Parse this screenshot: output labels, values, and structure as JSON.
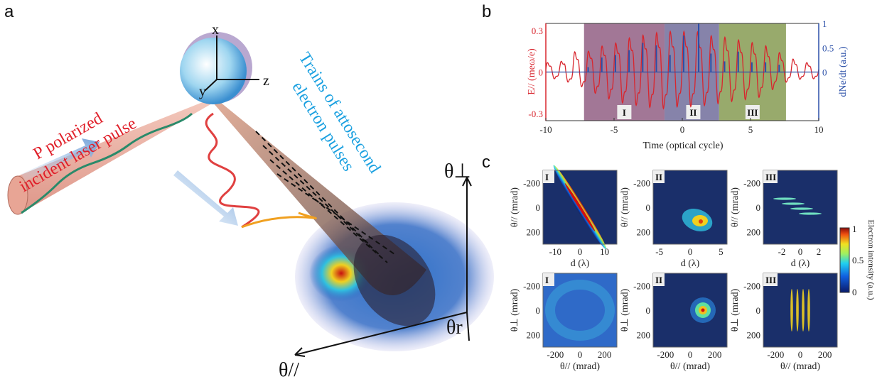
{
  "panel_labels": {
    "a": "a",
    "b": "b",
    "c": "c"
  },
  "panel_a": {
    "axis_x": "x",
    "axis_y": "y",
    "axis_z": "z",
    "laser_label_line1": "P polarized",
    "laser_label_line2": "incident laser pulse",
    "electron_label_line1": "Trains of attosecond",
    "electron_label_line2": "electron pulses",
    "theta_perp": "θ⊥",
    "theta_r": "θr",
    "theta_par": "θ//",
    "colors": {
      "laser_text": "#e0202a",
      "electron_text": "#1aa0e0",
      "cone": "#e9a79a"
    }
  },
  "chart_data": [
    {
      "type": "line",
      "panel": "b",
      "xlabel": "Time (optical cycle)",
      "ylabel_left": "E// (meω/e)",
      "ylabel_right": "dNe/dt (a.u.)",
      "xlim": [
        -10,
        10
      ],
      "ylim_left": [
        -0.35,
        0.35
      ],
      "ylim_right": [
        -1,
        1
      ],
      "x_ticks": [
        "-10",
        "-5",
        "0",
        "5",
        "10"
      ],
      "y_ticks_left": [
        "0.3",
        "0",
        "-0.3"
      ],
      "y_ticks_right": [
        "1",
        "0.5",
        "0"
      ],
      "regions": [
        {
          "label": "I",
          "x": [
            -7.2,
            -1.3
          ],
          "color": "#a27796"
        },
        {
          "label": "II",
          "x": [
            -1.3,
            2.7
          ],
          "color": "#8683aa"
        },
        {
          "label": "III",
          "x": [
            2.7,
            7.6
          ],
          "color": "#98aa6c"
        }
      ],
      "series": [
        {
          "axis": "left",
          "color": "#d8262e",
          "cycles": [
            -9,
            -8,
            -7,
            -6,
            -5,
            -4,
            -3,
            -2,
            -1,
            0,
            1,
            2,
            3,
            4,
            5,
            6,
            7,
            8,
            9
          ],
          "positive_peaks": [
            0.07,
            0.15,
            0.15,
            0.19,
            0.21,
            0.25,
            0.27,
            0.29,
            0.3,
            0.3,
            0.3,
            0.27,
            0.26,
            0.24,
            0.22,
            0.2,
            0.15,
            0.1,
            0.07
          ],
          "negative_peaks": [
            -0.05,
            -0.09,
            -0.12,
            -0.18,
            -0.21,
            -0.24,
            -0.25,
            -0.27,
            -0.27,
            -0.25,
            -0.26,
            -0.24,
            -0.23,
            -0.21,
            -0.2,
            -0.18,
            -0.1,
            -0.06,
            -0.05
          ]
        },
        {
          "axis": "right",
          "color": "#2a4fa8",
          "spike_x": [
            -6.9,
            -5.9,
            -4.9,
            -3.9,
            -2.9,
            -1.9,
            -0.9,
            0.1,
            1.2,
            2.1,
            3.1,
            4.1,
            5.1,
            6.1,
            7.1
          ],
          "spike_y": [
            0.1,
            0.3,
            0.35,
            0.45,
            0.6,
            0.55,
            0.35,
            0.75,
            1.0,
            0.38,
            0.22,
            0.42,
            0.2,
            0.2,
            0.15
          ]
        }
      ]
    },
    {
      "type": "heatmap",
      "panel": "c",
      "colorbar": {
        "label": "Electron intensity (a.u.)",
        "range": [
          0,
          1
        ],
        "ticks": [
          "1",
          "0.5",
          "0"
        ]
      },
      "colormap": "jet",
      "plots": [
        {
          "label": "I",
          "xlabel": "d (λ)",
          "ylabel": "θ// (mrad)",
          "xlim": [
            -15,
            15
          ],
          "ylim": [
            -300,
            300
          ],
          "x_ticks": [
            "-10",
            "0",
            "10"
          ],
          "y_ticks": [
            "-200",
            "0",
            "200"
          ]
        },
        {
          "label": "II",
          "xlabel": "d (λ)",
          "ylabel": "θ// (mrad)",
          "xlim": [
            -6,
            6
          ],
          "ylim": [
            -300,
            300
          ],
          "x_ticks": [
            "-5",
            "0",
            "5"
          ],
          "y_ticks": [
            "-200",
            "0",
            "200"
          ]
        },
        {
          "label": "III",
          "xlabel": "d (λ)",
          "ylabel": "θ// (mrad)",
          "xlim": [
            -4,
            4
          ],
          "ylim": [
            -300,
            300
          ],
          "x_ticks": [
            "-2",
            "0",
            "2"
          ],
          "y_ticks": [
            "-200",
            "0",
            "200"
          ]
        },
        {
          "label": "I",
          "xlabel": "θ// (mrad)",
          "ylabel": "θ⊥ (mrad)",
          "xlim": [
            -300,
            300
          ],
          "ylim": [
            -300,
            300
          ],
          "x_ticks": [
            "-200",
            "0",
            "200"
          ],
          "y_ticks": [
            "-200",
            "0",
            "200"
          ]
        },
        {
          "label": "II",
          "xlabel": "θ// (mrad)",
          "ylabel": "θ⊥ (mrad)",
          "xlim": [
            -300,
            300
          ],
          "ylim": [
            -300,
            300
          ],
          "x_ticks": [
            "-200",
            "0",
            "200"
          ],
          "y_ticks": [
            "-200",
            "0",
            "200"
          ]
        },
        {
          "label": "III",
          "xlabel": "θ// (mrad)",
          "ylabel": "θ⊥ (mrad)",
          "xlim": [
            -300,
            300
          ],
          "ylim": [
            -300,
            300
          ],
          "x_ticks": [
            "-200",
            "0",
            "200"
          ],
          "y_ticks": [
            "-200",
            "0",
            "200"
          ]
        }
      ]
    }
  ]
}
